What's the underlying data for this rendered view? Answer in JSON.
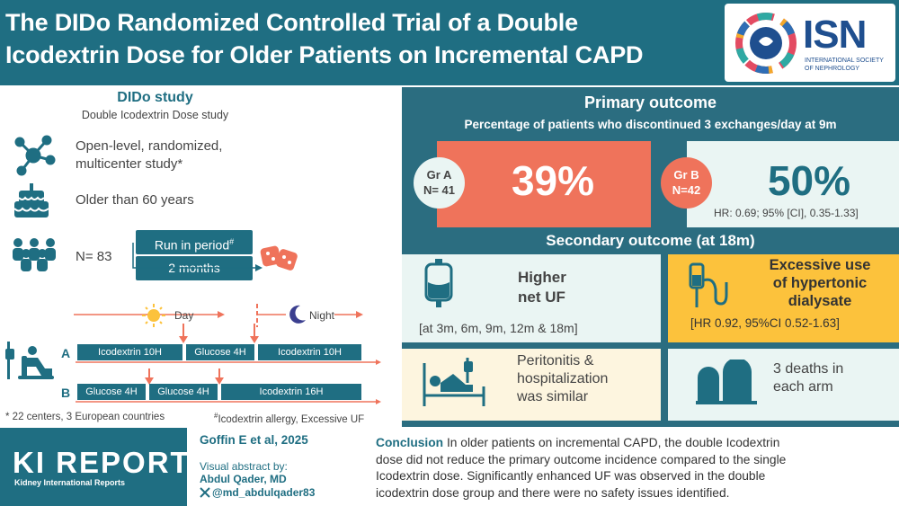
{
  "header": {
    "title_line1": "The DIDo Randomized Controlled Trial of a Double",
    "title_line2": "Icodextrin Dose for Older Patients on Incremental CAPD",
    "logo_name": "ISN",
    "logo_sub1": "INTERNATIONAL SOCIETY",
    "logo_sub2": "OF NEPHROLOGY"
  },
  "study": {
    "title": "DIDo study",
    "subtitle": "Double Icodextrin Dose study",
    "design_line1": "Open-level, randomized,",
    "design_line2": "multicenter study*",
    "age": "Older than 60 years",
    "n": "N= 83",
    "run_in": "Run in period",
    "run_in_mark": "#",
    "run_in_duration": "2 months",
    "day_label": "Day",
    "night_label": "Night",
    "arm_a": "A",
    "arm_b": "B",
    "arm_a_bars": [
      "Icodextrin 10H",
      "Glucose 4H",
      "Icodextrin 10H"
    ],
    "arm_b_bars": [
      "Glucose 4H",
      "Glucose 4H",
      "Icodextrin 16H"
    ],
    "footnote1": "* 22 centers, 3 European countries",
    "footnote2_mark": "#",
    "footnote2": "Icodextrin allergy, Excessive UF"
  },
  "primary": {
    "title": "Primary outcome",
    "subtitle": "Percentage of patients who discontinued 3 exchanges/day at 9m",
    "group_a_line1": "Gr A",
    "group_a_line2": "N= 41",
    "group_a_value": "39%",
    "group_b_line1": "Gr B",
    "group_b_line2": "N=42",
    "group_b_value": "50%",
    "hr": "HR: 0.69; 95% [CI], 0.35-1.33]"
  },
  "secondary": {
    "title": "Secondary outcome (at 18m)",
    "uf_line1": "Higher",
    "uf_line2": "net UF",
    "uf_times": "[at 3m, 6m, 9m, 12m & 18m]",
    "hyper_line1": "Excessive use",
    "hyper_line2": "of hypertonic",
    "hyper_line3": "dialysate",
    "hyper_hr": "[HR 0.92, 95%CI 0.52-1.63]",
    "perit_line1": "Peritonitis &",
    "perit_line2": "hospitalization",
    "perit_line3": "was similar",
    "deaths_line1": "3 deaths in",
    "deaths_line2": "each arm"
  },
  "footer": {
    "journal_big": "KI REPORTS",
    "journal_small": "Kidney International Reports",
    "citation": "Goffin E et al, 2025",
    "va_by": "Visual abstract by:",
    "author": "Abdul Qader, MD",
    "handle": "@md_abdulqader83",
    "conclusion_label": "Conclusion",
    "conclusion_l1": " In older patients on incremental CAPD, the double Icodextrin",
    "conclusion_l2": "dose did not reduce the primary outcome incidence compared to the single",
    "conclusion_l3": "Icodextrin dose. Significantly enhanced UF was observed in the double",
    "conclusion_l4": "icodextrin dose group and there were no safety issues identified."
  },
  "colors": {
    "teal": "#1f6e82",
    "coral": "#ef735b",
    "yellow": "#fcc23c",
    "cream": "#fdf5df",
    "mint": "#eaf5f3"
  },
  "icons": [
    "network-icon",
    "cake-icon",
    "crowd-icon",
    "dice-icon",
    "sun-icon",
    "moon-icon",
    "patient-chair-icon",
    "dialysis-bag-icon",
    "iv-drip-icon",
    "hospital-bed-icon",
    "tombstones-icon",
    "x-logo-icon",
    "isn-logo-icon"
  ]
}
